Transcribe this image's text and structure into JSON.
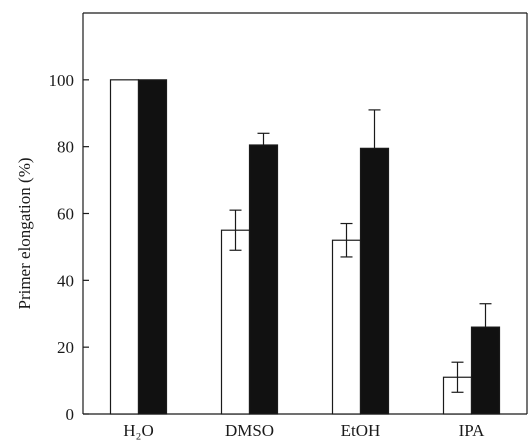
{
  "chart_data": {
    "type": "bar",
    "categories": [
      "H₂O",
      "DMSO",
      "EtOH",
      "IPA"
    ],
    "series": [
      {
        "fill": "#ffffff",
        "values": [
          100,
          55,
          52,
          11
        ],
        "errors": [
          0,
          6,
          5,
          4.5
        ]
      },
      {
        "fill": "#111111",
        "values": [
          100,
          80.5,
          79.5,
          26
        ],
        "errors": [
          0,
          3.5,
          11.5,
          7
        ]
      }
    ],
    "title": "",
    "xlabel": "",
    "ylabel": "Primer elongation (%)",
    "ylim": [
      0,
      120
    ],
    "yticks": [
      0,
      20,
      40,
      60,
      80,
      100
    ],
    "grid": false
  }
}
